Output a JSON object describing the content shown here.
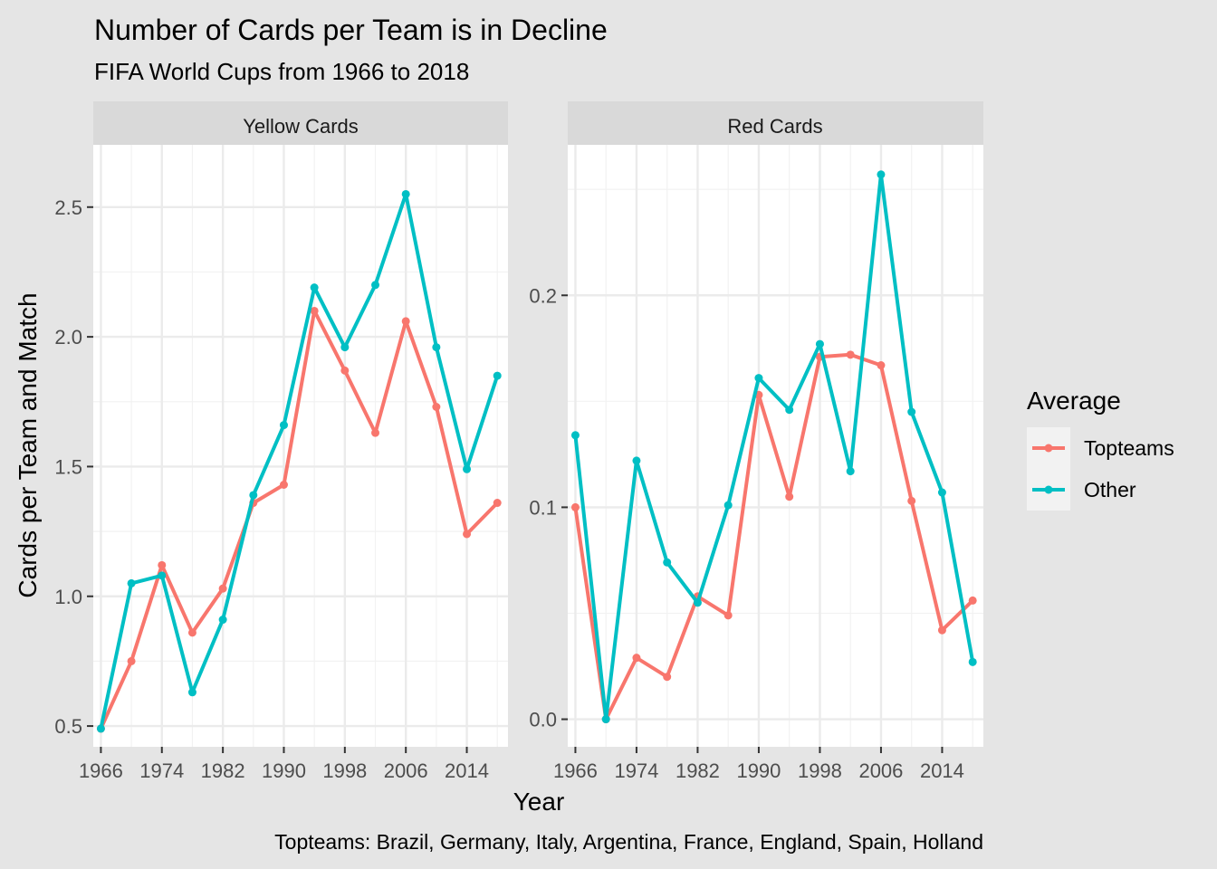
{
  "chart_data": {
    "type": "line",
    "title": "Number of Cards per Team is in Decline",
    "subtitle": "FIFA World Cups from 1966 to 2018",
    "xlabel": "Year",
    "ylabel": "Cards per Team and Match",
    "caption": "Topteams: Brazil, Germany, Italy, Argentina, France, England, Spain, Holland",
    "legend": {
      "title": "Average",
      "placement": "right",
      "entries": [
        {
          "name": "Topteams",
          "color": "#F8766D"
        },
        {
          "name": "Other",
          "color": "#00BFC4"
        }
      ]
    },
    "x_ticks": [
      "1966",
      "1974",
      "1982",
      "1990",
      "1998",
      "2006",
      "2014"
    ],
    "facets": [
      {
        "strip": "Yellow Cards",
        "x": [
          1966,
          1970,
          1974,
          1978,
          1982,
          1986,
          1990,
          1994,
          1998,
          2002,
          2006,
          2010,
          2014,
          2018
        ],
        "xlim": [
          1965,
          2019.4
        ],
        "ylim": [
          0.42,
          2.74
        ],
        "y_ticks": [
          "0.5",
          "1.0",
          "1.5",
          "2.0",
          "2.5"
        ],
        "grid": true,
        "series": [
          {
            "name": "Topteams",
            "color": "#F8766D",
            "values": [
              0.49,
              0.75,
              1.12,
              0.86,
              1.03,
              1.36,
              1.43,
              2.1,
              1.87,
              1.63,
              2.06,
              1.73,
              1.24,
              1.36
            ]
          },
          {
            "name": "Other",
            "color": "#00BFC4",
            "values": [
              0.49,
              1.05,
              1.08,
              0.63,
              0.91,
              1.39,
              1.66,
              2.19,
              1.96,
              2.2,
              2.55,
              1.96,
              1.49,
              1.85
            ]
          }
        ]
      },
      {
        "strip": "Red Cards",
        "x": [
          1966,
          1970,
          1974,
          1978,
          1982,
          1986,
          1990,
          1994,
          1998,
          2002,
          2006,
          2010,
          2014,
          2018
        ],
        "xlim": [
          1965,
          2019.4
        ],
        "ylim": [
          -0.013,
          0.271
        ],
        "y_ticks": [
          "0.0",
          "0.1",
          "0.2"
        ],
        "grid": true,
        "series": [
          {
            "name": "Topteams",
            "color": "#F8766D",
            "values": [
              0.1,
              0.0,
              0.029,
              0.02,
              0.058,
              0.049,
              0.153,
              0.105,
              0.171,
              0.172,
              0.167,
              0.103,
              0.042,
              0.056
            ]
          },
          {
            "name": "Other",
            "color": "#00BFC4",
            "values": [
              0.134,
              0.0,
              0.122,
              0.074,
              0.055,
              0.101,
              0.161,
              0.146,
              0.177,
              0.117,
              0.257,
              0.145,
              0.107,
              0.027
            ]
          }
        ]
      }
    ]
  }
}
